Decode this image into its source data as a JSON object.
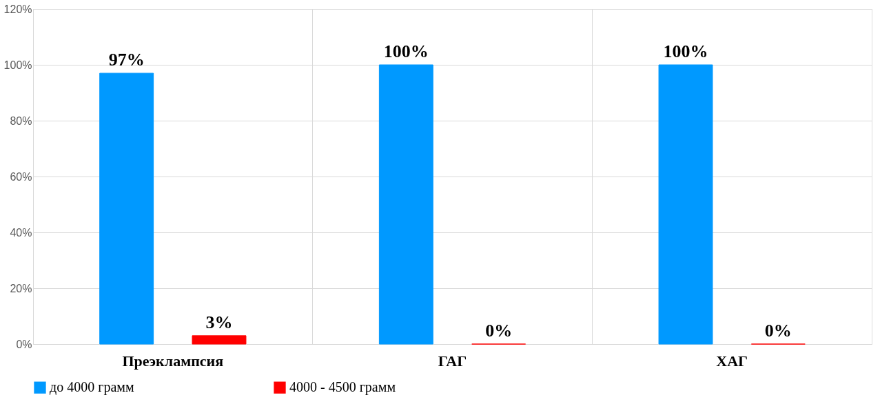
{
  "chart_data": {
    "type": "bar",
    "categories": [
      "Преэклампсия",
      "ГАГ",
      "ХАГ"
    ],
    "series": [
      {
        "name": "до 4000 грамм",
        "color": "#0099ff",
        "values": [
          97,
          100,
          100
        ],
        "value_labels": [
          "97%",
          "100%",
          "100%"
        ]
      },
      {
        "name": "4000 - 4500 грамм",
        "color": "#ff0000",
        "values": [
          3,
          0,
          0
        ],
        "value_labels": [
          "3%",
          "0%",
          "0%"
        ]
      }
    ],
    "ylim": [
      0,
      120
    ],
    "yticks": [
      {
        "value": 0,
        "label": "0%"
      },
      {
        "value": 20,
        "label": "20%"
      },
      {
        "value": 40,
        "label": "40%"
      },
      {
        "value": 60,
        "label": "60%"
      },
      {
        "value": 80,
        "label": "80%"
      },
      {
        "value": 100,
        "label": "100%"
      },
      {
        "value": 120,
        "label": "120%"
      }
    ],
    "grid": true,
    "legend": "bottom"
  }
}
